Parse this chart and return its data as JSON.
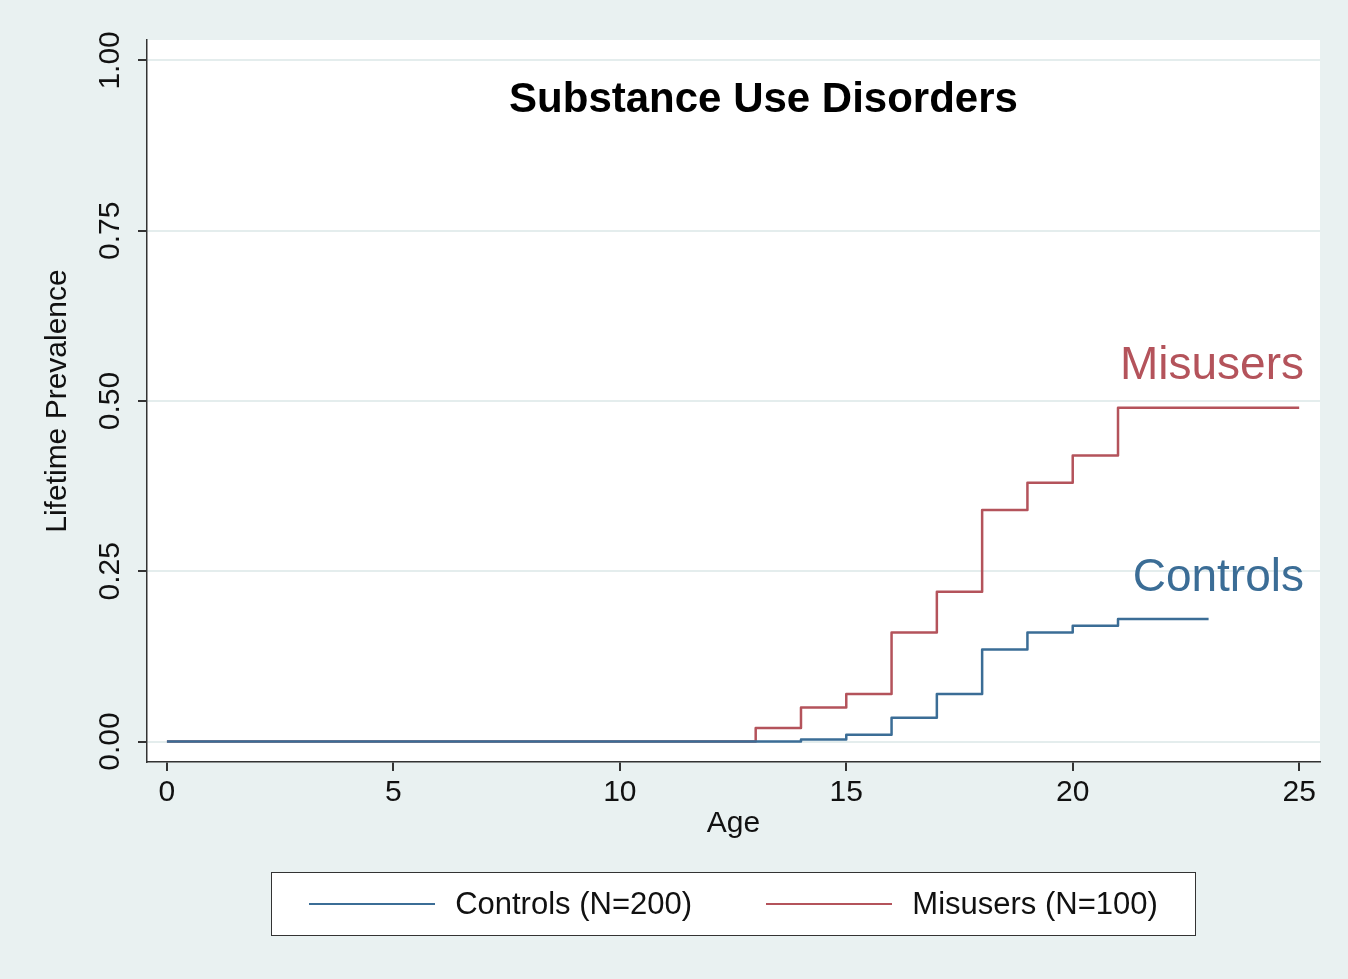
{
  "chart_data": {
    "type": "step",
    "title": "Substance Use Disorders",
    "xlabel": "Age",
    "ylabel": "Lifetime Prevalence",
    "series": [
      {
        "name": "Controls (N=200)",
        "color": "#3b6d96",
        "x": [
          0,
          14,
          15,
          16,
          17,
          18,
          19,
          20,
          21,
          23
        ],
        "values": [
          0,
          0.003,
          0.01,
          0.035,
          0.07,
          0.135,
          0.16,
          0.17,
          0.18,
          0.18
        ]
      },
      {
        "name": "Misusers (N=100)",
        "color": "#b4535b",
        "x": [
          0,
          13,
          14,
          15,
          16,
          17,
          18,
          19,
          20,
          21,
          25
        ],
        "values": [
          0,
          0.02,
          0.05,
          0.07,
          0.16,
          0.22,
          0.34,
          0.38,
          0.42,
          0.49,
          0.49
        ]
      }
    ],
    "annotations": [
      "Controls",
      "Misusers"
    ],
    "xlim": [
      -0.44,
      25.46
    ],
    "ylim": [
      -0.03,
      1.03
    ],
    "xticks": [
      0,
      5,
      10,
      15,
      20,
      25
    ],
    "yticks": [
      {
        "value": 0,
        "label": "0.00"
      },
      {
        "value": 0.25,
        "label": "0.25"
      },
      {
        "value": 0.5,
        "label": "0.50"
      },
      {
        "value": 0.75,
        "label": "0.75"
      },
      {
        "value": 1,
        "label": "1.00"
      }
    ],
    "grid": "y",
    "legend": "bottom",
    "marker": "none",
    "line_style": "solid"
  }
}
